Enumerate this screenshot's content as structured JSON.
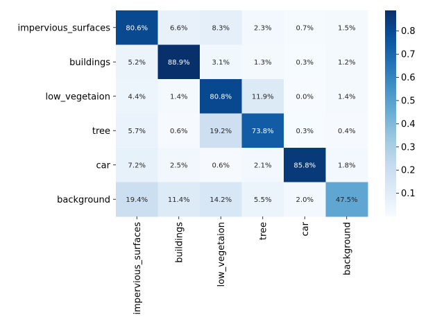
{
  "chart_data": {
    "type": "heatmap",
    "title": "",
    "xlabel": "",
    "ylabel": "",
    "row_labels": [
      "impervious_surfaces",
      "buildings",
      "low_vegetaion",
      "tree",
      "car",
      "background"
    ],
    "col_labels": [
      "impervious_surfaces",
      "buildings",
      "low_vegetaion",
      "tree",
      "car",
      "background"
    ],
    "values": [
      [
        0.806,
        0.066,
        0.083,
        0.023,
        0.007,
        0.015
      ],
      [
        0.052,
        0.889,
        0.031,
        0.013,
        0.003,
        0.012
      ],
      [
        0.044,
        0.014,
        0.808,
        0.119,
        0.0,
        0.014
      ],
      [
        0.057,
        0.006,
        0.192,
        0.738,
        0.003,
        0.004
      ],
      [
        0.072,
        0.025,
        0.006,
        0.021,
        0.858,
        0.018
      ],
      [
        0.194,
        0.114,
        0.142,
        0.055,
        0.02,
        0.475
      ]
    ],
    "cell_labels": [
      [
        "80.6%",
        "6.6%",
        "8.3%",
        "2.3%",
        "0.7%",
        "1.5%"
      ],
      [
        "5.2%",
        "88.9%",
        "3.1%",
        "1.3%",
        "0.3%",
        "1.2%"
      ],
      [
        "4.4%",
        "1.4%",
        "80.8%",
        "11.9%",
        "0.0%",
        "1.4%"
      ],
      [
        "5.7%",
        "0.6%",
        "19.2%",
        "73.8%",
        "0.3%",
        "0.4%"
      ],
      [
        "7.2%",
        "2.5%",
        "0.6%",
        "2.1%",
        "85.8%",
        "1.8%"
      ],
      [
        "19.4%",
        "11.4%",
        "14.2%",
        "5.5%",
        "2.0%",
        "47.5%"
      ]
    ],
    "colormap": "Blues",
    "colorbar": {
      "vmin": 0.0,
      "vmax": 0.889,
      "ticks": [
        0.1,
        0.2,
        0.3,
        0.4,
        0.5,
        0.6,
        0.7,
        0.8
      ],
      "tick_labels": [
        "0.1",
        "0.2",
        "0.3",
        "0.4",
        "0.5",
        "0.6",
        "0.7",
        "0.8"
      ]
    }
  }
}
